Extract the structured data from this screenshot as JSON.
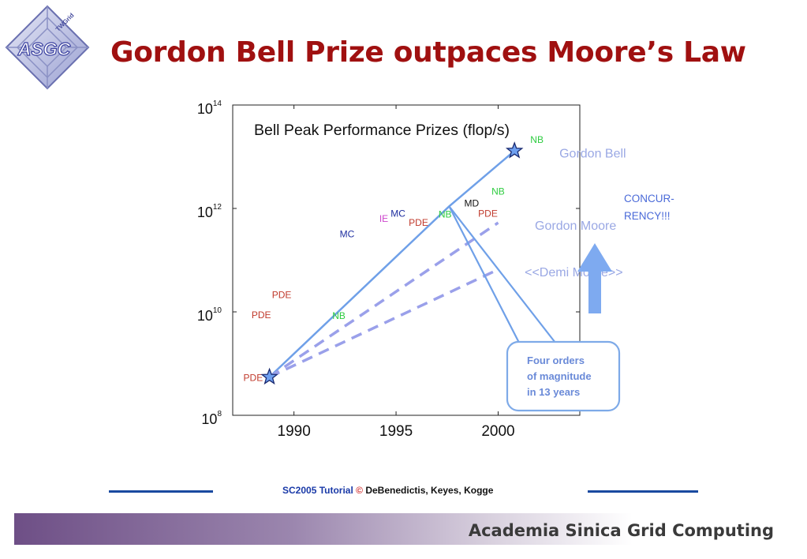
{
  "slide": {
    "title": "Gordon Bell Prize outpaces Moore’s Law",
    "logo_text": "ASGC",
    "logo_badge": "TWGrid"
  },
  "chart_data": {
    "type": "scatter",
    "title": "Bell Peak Performance Prizes (flop/s)",
    "xlabel": "",
    "ylabel": "",
    "xlim": [
      1987,
      2004
    ],
    "ylim": [
      100000000.0,
      100000000000000.0
    ],
    "yscale": "log",
    "x_ticks": [
      {
        "value": 1990,
        "label": "1990"
      },
      {
        "value": 1995,
        "label": "1995"
      },
      {
        "value": 2000,
        "label": "2000"
      }
    ],
    "y_ticks": [
      {
        "value": 100000000.0,
        "base": "10",
        "exp": "8"
      },
      {
        "value": 10000000000.0,
        "base": "10",
        "exp": "10"
      },
      {
        "value": 1000000000000.0,
        "base": "10",
        "exp": "12"
      },
      {
        "value": 100000000000000.0,
        "base": "10",
        "exp": "14"
      }
    ],
    "points": [
      {
        "label": "PDE",
        "x": 1988.0,
        "y": 550000000.0,
        "color": "#c0392b"
      },
      {
        "label": "PDE",
        "x": 1988.4,
        "y": 9000000000.0,
        "color": "#c0392b"
      },
      {
        "label": "PDE",
        "x": 1989.4,
        "y": 22000000000.0,
        "color": "#c0392b"
      },
      {
        "label": "NB",
        "x": 1992.2,
        "y": 8700000000.0,
        "color": "#2ecc40"
      },
      {
        "label": "MC",
        "x": 1992.6,
        "y": 330000000000.0,
        "color": "#1f2fa0"
      },
      {
        "label": "IE",
        "x": 1994.4,
        "y": 660000000000.0,
        "color": "#cc44cc"
      },
      {
        "label": "MC",
        "x": 1995.1,
        "y": 830000000000.0,
        "color": "#1f2fa0"
      },
      {
        "label": "PDE",
        "x": 1996.1,
        "y": 550000000000.0,
        "color": "#c0392b"
      },
      {
        "label": "NB",
        "x": 1997.4,
        "y": 800000000000.0,
        "color": "#2ecc40"
      },
      {
        "label": "MD",
        "x": 1998.7,
        "y": 1300000000000.0,
        "color": "#111111"
      },
      {
        "label": "PDE",
        "x": 1999.5,
        "y": 830000000000.0,
        "color": "#c0392b"
      },
      {
        "label": "NB",
        "x": 2000.0,
        "y": 2200000000000.0,
        "color": "#2ecc40"
      },
      {
        "label": "NB",
        "x": 2001.9,
        "y": 22000000000000.0,
        "color": "#2ecc40"
      }
    ],
    "stars": [
      {
        "x": 1988.8,
        "y": 550000000.0
      },
      {
        "x": 2000.8,
        "y": 13000000000000.0
      }
    ],
    "lines": [
      {
        "name": "Gordon Bell",
        "style": "solid",
        "color": "#6fa0e8",
        "x": [
          1988.8,
          1997.6,
          2000.8
        ],
        "y": [
          550000000.0,
          1100000000000.0,
          13000000000000.0
        ],
        "label_x": 2003.0,
        "label_y": 12000000000000.0
      },
      {
        "name": "Gordon Moore",
        "style": "dashed",
        "color": "#9aa0ea",
        "x": [
          1988.8,
          2000.0
        ],
        "y": [
          550000000.0,
          530000000000.0
        ],
        "label_x": 2001.8,
        "label_y": 480000000000.0
      },
      {
        "name": "<<Demi Moore>>",
        "style": "dashed",
        "color": "#9aa0ea",
        "x": [
          1988.8,
          2000.0
        ],
        "y": [
          550000000.0,
          66000000000.0
        ],
        "label_x": 2001.3,
        "label_y": 60000000000.0
      }
    ],
    "annotations": {
      "concurrency": "CONCUR-\nRENCY!!!",
      "callout": "Four orders\nof magnitude\nin 13 years"
    }
  },
  "credit": {
    "sc": "SC2005 Tutorial",
    "copy": "©",
    "names": "DeBenedictis, Keyes, Kogge"
  },
  "footer": {
    "text": "Academia Sinica Grid Computing"
  }
}
